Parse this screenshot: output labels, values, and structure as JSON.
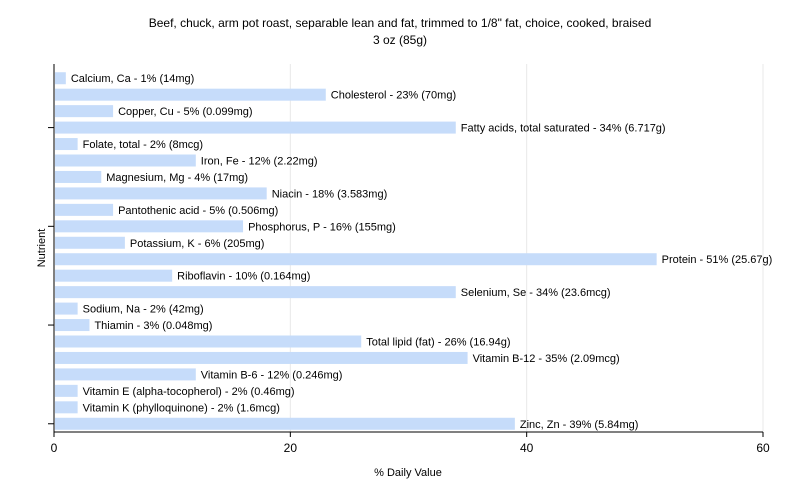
{
  "chart_data": {
    "type": "bar",
    "orientation": "horizontal",
    "title": "Beef, chuck, arm pot roast, separable lean and fat, trimmed to 1/8\" fat, choice, cooked, braised",
    "subtitle": "3 oz (85g)",
    "xlabel": "% Daily Value",
    "ylabel": "Nutrient",
    "xlim": [
      0,
      60
    ],
    "xticks": [
      0,
      20,
      40,
      60
    ],
    "grid": true,
    "bar_color": "#c6dcfa",
    "categories": [
      "Calcium, Ca",
      "Cholesterol",
      "Copper, Cu",
      "Fatty acids, total saturated",
      "Folate, total",
      "Iron, Fe",
      "Magnesium, Mg",
      "Niacin",
      "Pantothenic acid",
      "Phosphorus, P",
      "Potassium, K",
      "Protein",
      "Riboflavin",
      "Selenium, Se",
      "Sodium, Na",
      "Thiamin",
      "Total lipid (fat)",
      "Vitamin B-12",
      "Vitamin B-6",
      "Vitamin E (alpha-tocopherol)",
      "Vitamin K (phylloquinone)",
      "Zinc, Zn"
    ],
    "values": [
      1,
      23,
      5,
      34,
      2,
      12,
      4,
      18,
      5,
      16,
      6,
      51,
      10,
      34,
      2,
      3,
      26,
      35,
      12,
      2,
      2,
      39
    ],
    "labels": [
      "Calcium, Ca - 1% (14mg)",
      "Cholesterol - 23% (70mg)",
      "Copper, Cu - 5% (0.099mg)",
      "Fatty acids, total saturated - 34% (6.717g)",
      "Folate, total - 2% (8mcg)",
      "Iron, Fe - 12% (2.22mg)",
      "Magnesium, Mg - 4% (17mg)",
      "Niacin - 18% (3.583mg)",
      "Pantothenic acid - 5% (0.506mg)",
      "Phosphorus, P - 16% (155mg)",
      "Potassium, K - 6% (205mg)",
      "Protein - 51% (25.67g)",
      "Riboflavin - 10% (0.164mg)",
      "Selenium, Se - 34% (23.6mcg)",
      "Sodium, Na - 2% (42mg)",
      "Thiamin - 3% (0.048mg)",
      "Total lipid (fat) - 26% (16.94g)",
      "Vitamin B-12 - 35% (2.09mcg)",
      "Vitamin B-6 - 12% (0.246mg)",
      "Vitamin E (alpha-tocopherol) - 2% (0.46mg)",
      "Vitamin K (phylloquinone) - 2% (1.6mcg)",
      "Zinc, Zn - 39% (5.84mg)"
    ]
  }
}
